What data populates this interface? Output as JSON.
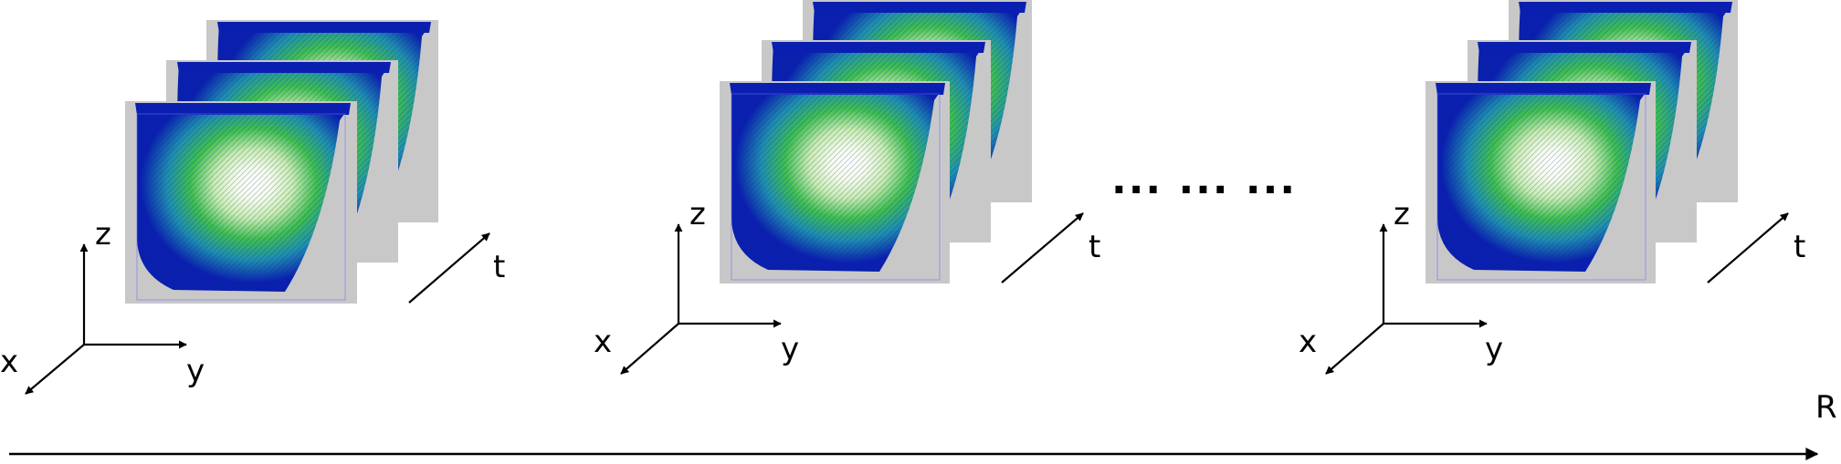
{
  "groups": [
    {
      "axes": {
        "x": "x",
        "y": "y",
        "z": "z"
      },
      "time_label": "t"
    },
    {
      "axes": {
        "x": "x",
        "y": "y",
        "z": "z"
      },
      "time_label": "t"
    },
    {
      "axes": {
        "x": "x",
        "y": "y",
        "z": "z"
      },
      "time_label": "t"
    }
  ],
  "ellipsis": "... ... ...",
  "r_axis_label": "R",
  "colors": {
    "frame_bg": "#c8c8c8",
    "flow_deep": "#0a1fb0",
    "flow_mid": "#1f7fb0",
    "flow_green": "#3fbf4f",
    "flow_light": "#c8ecb0",
    "flow_core": "#ffffff"
  }
}
